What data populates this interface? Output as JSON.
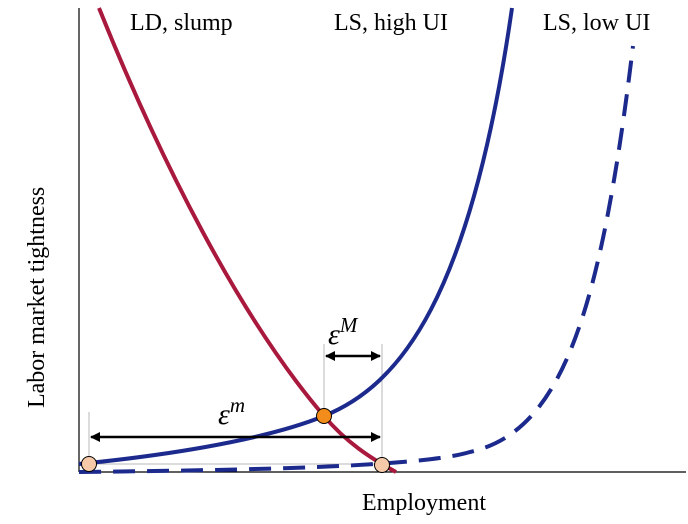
{
  "labels": {
    "ld_slump": "LD, slump",
    "ls_high_ui": "LS, high UI",
    "ls_low_ui": "LS, low UI",
    "x_axis": "Employment",
    "y_axis": "Labor market tightness",
    "eps_symbol": "ε",
    "eps_big_sup": "M",
    "eps_small_sup": "m"
  },
  "colors": {
    "ld_curve": "#A8193D",
    "ls_curve": "#1B2A8C",
    "equilibrium_point": "#F28C1A",
    "endpoint_marker": "#F6C9A8",
    "guide_line": "#B8B8B8",
    "arrow": "#000000"
  },
  "icons": {
    "arrow": "double-headed-arrow",
    "equilibrium": "filled-circle",
    "endpoint": "filled-circle"
  }
}
